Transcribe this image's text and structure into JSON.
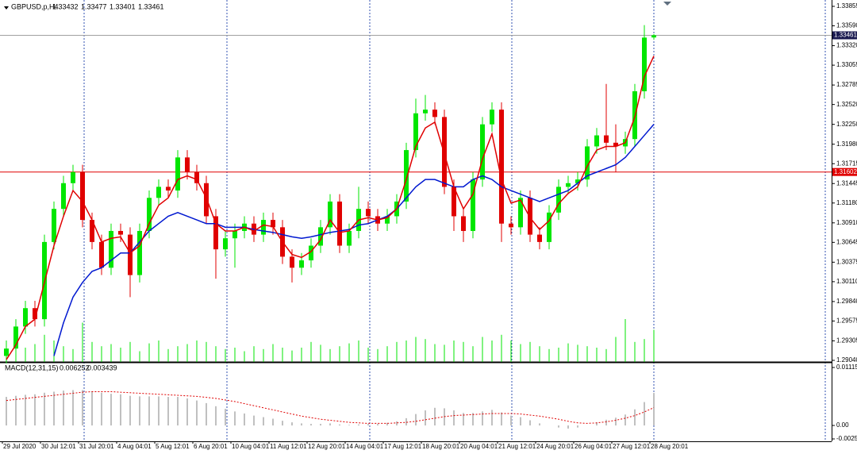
{
  "chart_data": {
    "type": "candlestick",
    "header": {
      "symbol": "GBPUSD,p,H4"
    },
    "macd_label": "MACD(12,31,15)",
    "up_color": "#00e600",
    "down_color": "#e00000",
    "open": [
      1.291,
      1.292,
      1.295,
      1.2975,
      1.296,
      1.3065,
      1.311,
      1.3145,
      1.316,
      1.3095,
      1.3065,
      1.303,
      1.308,
      1.3075,
      1.302,
      1.308,
      1.3125,
      1.314,
      1.3135,
      1.318,
      1.316,
      1.3145,
      1.31,
      1.3055,
      1.307,
      1.308,
      1.309,
      1.3075,
      1.3095,
      1.3085,
      1.3045,
      1.303,
      1.304,
      1.306,
      1.3085,
      1.312,
      1.306,
      1.308,
      1.311,
      1.31,
      1.309,
      1.31,
      1.312,
      1.319,
      1.324,
      1.3245,
      1.3235,
      1.314,
      1.31,
      1.308,
      1.315,
      1.3225,
      1.3245,
      1.309,
      1.3085,
      1.3125,
      1.3075,
      1.3065,
      1.3105,
      1.314,
      1.3145,
      1.315,
      1.3195,
      1.321,
      1.32,
      1.3195,
      1.3205,
      1.327,
      1.33432
    ],
    "high": [
      1.293,
      1.296,
      1.2985,
      1.2985,
      1.3075,
      1.312,
      1.3155,
      1.317,
      1.317,
      1.3105,
      1.3075,
      1.309,
      1.309,
      1.3085,
      1.309,
      1.3135,
      1.315,
      1.315,
      1.319,
      1.319,
      1.317,
      1.3155,
      1.311,
      1.308,
      1.309,
      1.31,
      1.31,
      1.3105,
      1.3105,
      1.3095,
      1.3055,
      1.305,
      1.307,
      1.3095,
      1.313,
      1.313,
      1.309,
      1.314,
      1.312,
      1.311,
      1.311,
      1.313,
      1.32,
      1.326,
      1.3265,
      1.3255,
      1.3245,
      1.315,
      1.311,
      1.316,
      1.3235,
      1.3255,
      1.3255,
      1.31,
      1.3135,
      1.3135,
      1.3085,
      1.3115,
      1.315,
      1.3155,
      1.316,
      1.3205,
      1.322,
      1.328,
      1.3225,
      1.3215,
      1.328,
      1.336,
      1.33477
    ],
    "low": [
      1.29,
      1.291,
      1.294,
      1.295,
      1.295,
      1.3055,
      1.31,
      1.3135,
      1.3085,
      1.3055,
      1.302,
      1.302,
      1.3065,
      1.299,
      1.301,
      1.307,
      1.3115,
      1.3125,
      1.3125,
      1.315,
      1.3135,
      1.309,
      1.3015,
      1.3045,
      1.303,
      1.307,
      1.3065,
      1.3065,
      1.3075,
      1.3035,
      1.301,
      1.302,
      1.303,
      1.305,
      1.3075,
      1.305,
      1.305,
      1.307,
      1.309,
      1.308,
      1.308,
      1.309,
      1.311,
      1.318,
      1.323,
      1.3225,
      1.313,
      1.308,
      1.3065,
      1.307,
      1.314,
      1.3215,
      1.3065,
      1.3075,
      1.3075,
      1.3065,
      1.3055,
      1.3055,
      1.3095,
      1.313,
      1.3135,
      1.314,
      1.3185,
      1.319,
      1.316,
      1.3185,
      1.3195,
      1.326,
      1.33401
    ],
    "close": [
      1.292,
      1.295,
      1.2975,
      1.296,
      1.3065,
      1.311,
      1.3145,
      1.316,
      1.3095,
      1.3065,
      1.303,
      1.308,
      1.3075,
      1.302,
      1.308,
      1.3125,
      1.314,
      1.3135,
      1.318,
      1.316,
      1.3145,
      1.31,
      1.3055,
      1.307,
      1.308,
      1.309,
      1.3075,
      1.3095,
      1.3085,
      1.3045,
      1.303,
      1.304,
      1.306,
      1.3085,
      1.312,
      1.306,
      1.308,
      1.311,
      1.31,
      1.309,
      1.31,
      1.312,
      1.319,
      1.324,
      1.3245,
      1.3235,
      1.314,
      1.31,
      1.308,
      1.315,
      1.3225,
      1.3245,
      1.309,
      1.3085,
      1.3125,
      1.3075,
      1.3065,
      1.3105,
      1.314,
      1.3145,
      1.315,
      1.3195,
      1.321,
      1.32,
      1.3195,
      1.3205,
      1.327,
      1.3343,
      1.33461
    ],
    "ma_fast": {
      "color": "#e00000",
      "values": [
        1.2905,
        1.2925,
        1.295,
        1.296,
        1.301,
        1.306,
        1.31,
        1.3135,
        1.312,
        1.3095,
        1.3065,
        1.307,
        1.3072,
        1.305,
        1.306,
        1.309,
        1.3115,
        1.3125,
        1.315,
        1.3155,
        1.315,
        1.3125,
        1.309,
        1.308,
        1.308,
        1.3085,
        1.308,
        1.3088,
        1.3086,
        1.3065,
        1.3048,
        1.3044,
        1.3052,
        1.3068,
        1.3095,
        1.3078,
        1.308,
        1.3095,
        1.3098,
        1.3095,
        1.3098,
        1.311,
        1.315,
        1.3195,
        1.322,
        1.3228,
        1.3185,
        1.314,
        1.311,
        1.313,
        1.3178,
        1.3212,
        1.315,
        1.3118,
        1.3122,
        1.3098,
        1.3082,
        1.3094,
        1.3117,
        1.3131,
        1.314,
        1.3168,
        1.319,
        1.3195,
        1.3195,
        1.32,
        1.3235,
        1.329,
        1.3318
      ]
    },
    "ma_slow": {
      "color": "#0018d0",
      "values": [
        null,
        null,
        null,
        null,
        null,
        1.291,
        1.2955,
        1.299,
        1.301,
        1.3025,
        1.303,
        1.304,
        1.305,
        1.305,
        1.3065,
        1.308,
        1.309,
        1.31,
        1.3105,
        1.31,
        1.3095,
        1.309,
        1.309,
        1.3085,
        1.3085,
        1.3085,
        1.3082,
        1.308,
        1.3078,
        1.3075,
        1.3072,
        1.307,
        1.3072,
        1.3075,
        1.3078,
        1.308,
        1.3082,
        1.3088,
        1.309,
        1.3095,
        1.31,
        1.311,
        1.3125,
        1.314,
        1.315,
        1.315,
        1.3145,
        1.314,
        1.314,
        1.315,
        1.3155,
        1.315,
        1.314,
        1.3135,
        1.313,
        1.3125,
        1.312,
        1.3125,
        1.313,
        1.3135,
        1.3145,
        1.3155,
        1.316,
        1.3165,
        1.317,
        1.318,
        1.3195,
        1.321,
        1.3225
      ]
    },
    "volume": {
      "color": "#00e600",
      "values": [
        30,
        12,
        20,
        25,
        38,
        30,
        22,
        18,
        55,
        28,
        22,
        25,
        20,
        28,
        15,
        26,
        30,
        18,
        22,
        25,
        30,
        28,
        22,
        18,
        20,
        15,
        22,
        18,
        25,
        20,
        16,
        20,
        28,
        24,
        18,
        22,
        26,
        30,
        20,
        18,
        22,
        28,
        30,
        35,
        32,
        25,
        24,
        30,
        28,
        22,
        35,
        30,
        38,
        30,
        25,
        28,
        22,
        18,
        20,
        26,
        24,
        22,
        20,
        18,
        35,
        60,
        28,
        32,
        45
      ]
    },
    "macd_histogram": {
      "color": "#c0c0c0",
      "values": [
        0.0055,
        0.0057,
        0.0059,
        0.006,
        0.0063,
        0.0065,
        0.0067,
        0.0068,
        0.0068,
        0.0066,
        0.0063,
        0.0061,
        0.006,
        0.0057,
        0.0056,
        0.0056,
        0.0056,
        0.0055,
        0.0055,
        0.0052,
        0.0048,
        0.0043,
        0.0037,
        0.0032,
        0.0027,
        0.0023,
        0.0019,
        0.0016,
        0.0013,
        0.0009,
        0.0006,
        0.0004,
        0.0003,
        0.0003,
        0.0004,
        0.0002,
        0.0001,
        0.0002,
        0.0003,
        0.0003,
        0.0005,
        0.0008,
        0.0014,
        0.0022,
        0.0029,
        0.0034,
        0.0033,
        0.0029,
        0.0024,
        0.0024,
        0.0027,
        0.003,
        0.0025,
        0.0019,
        0.0016,
        0.001,
        0.0004,
        0.0,
        -0.0004,
        -0.0006,
        -0.0004,
        0.0,
        0.0006,
        0.0011,
        0.0015,
        0.0021,
        0.0031,
        0.0045,
        0.006252
      ]
    },
    "macd_signal": {
      "color": "#e00000",
      "values": [
        0.0048,
        0.005,
        0.0052,
        0.0054,
        0.0056,
        0.0058,
        0.006,
        0.0062,
        0.0064,
        0.0065,
        0.0065,
        0.0065,
        0.0064,
        0.0063,
        0.0062,
        0.0061,
        0.006,
        0.0059,
        0.0058,
        0.0057,
        0.0056,
        0.0054,
        0.0052,
        0.0049,
        0.0046,
        0.0042,
        0.0038,
        0.0034,
        0.003,
        0.0026,
        0.0022,
        0.0018,
        0.0015,
        0.0012,
        0.001,
        0.0008,
        0.0006,
        0.0005,
        0.0004,
        0.0004,
        0.0004,
        0.0005,
        0.0006,
        0.0008,
        0.0011,
        0.0014,
        0.0017,
        0.0019,
        0.002,
        0.0021,
        0.0022,
        0.0023,
        0.0023,
        0.0023,
        0.0022,
        0.002,
        0.0018,
        0.0015,
        0.0012,
        0.0008,
        0.0005,
        0.0004,
        0.0005,
        0.0007,
        0.001,
        0.0014,
        0.0019,
        0.0026,
        0.003439
      ]
    },
    "level": 1.31602,
    "level_color": "#e00000",
    "ylim": [
      1.2904,
      1.33855
    ],
    "yticks": [
      1.33855,
      {
        "value": 1.3359,
        "label": "1.33590"
      },
      {
        "value": 1.3332,
        "label": "1.33320"
      },
      1.33055,
      1.32785,
      {
        "value": 1.3252,
        "label": "1.32520"
      },
      {
        "value": 1.3225,
        "label": "1.32250"
      },
      {
        "value": 1.3198,
        "label": "1.31980"
      },
      1.31715,
      1.31445,
      {
        "value": 1.3118,
        "label": "1.31180"
      },
      {
        "value": 1.3091,
        "label": "1.30910"
      },
      1.30645,
      1.30375,
      {
        "value": 1.3011,
        "label": "1.30110"
      },
      {
        "value": 1.2984,
        "label": "1.29840"
      },
      1.29575,
      1.29305,
      {
        "value": 1.2904,
        "label": "1.29040"
      }
    ],
    "y2lim": [
      -0.00259,
      0.011154
    ],
    "y2ticks": [
      0.011154,
      {
        "value": 0,
        "label": "0.00"
      },
      -0.00259
    ],
    "time_labels": [
      "29 Jul 2020",
      "30 Jul 12:01",
      "31 Jul 20:01",
      "4 Aug 04:01",
      "5 Aug 12:01",
      "6 Aug 20:01",
      "10 Aug 04:01",
      "11 Aug 12:01",
      "12 Aug 20:01",
      "14 Aug 04:01",
      "17 Aug 12:01",
      "18 Aug 20:01",
      "20 Aug 04:01",
      "21 Aug 12:01",
      "24 Aug 20:01",
      "26 Aug 04:01",
      "27 Aug 12:01",
      "28 Aug 20:01"
    ]
  }
}
